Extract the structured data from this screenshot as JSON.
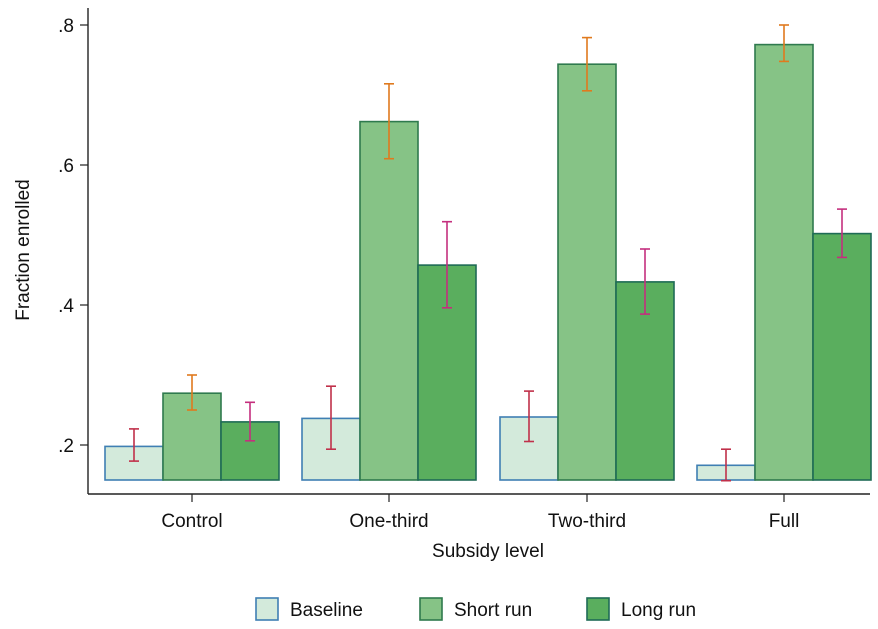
{
  "chart_data": {
    "type": "bar",
    "xlabel": "Subsidy level",
    "ylabel": "Fraction enrolled",
    "categories": [
      "Control",
      "One-third",
      "Two-third",
      "Full"
    ],
    "ylim": [
      0.15,
      0.815
    ],
    "yticks": [
      0.2,
      0.4,
      0.6,
      0.8
    ],
    "ytick_labels": [
      ".2",
      ".4",
      ".6",
      ".8"
    ],
    "grid": false,
    "legend_position": "bottom",
    "series": [
      {
        "name": "Baseline",
        "values": [
          0.198,
          0.238,
          0.24,
          0.171
        ],
        "err_low": [
          0.177,
          0.194,
          0.205,
          0.149
        ],
        "err_high": [
          0.223,
          0.284,
          0.277,
          0.194
        ],
        "fill": "#d3eadb",
        "stroke": "#3f7fb3",
        "errorbar_color": "#c0304a"
      },
      {
        "name": "Short run",
        "values": [
          0.274,
          0.662,
          0.744,
          0.772
        ],
        "err_low": [
          0.25,
          0.609,
          0.706,
          0.748
        ],
        "err_high": [
          0.3,
          0.716,
          0.782,
          0.8
        ],
        "fill": "#86c386",
        "stroke": "#2f7a4e",
        "errorbar_color": "#e07a1e"
      },
      {
        "name": "Long run",
        "values": [
          0.233,
          0.457,
          0.433,
          0.502
        ],
        "err_low": [
          0.206,
          0.396,
          0.387,
          0.468
        ],
        "err_high": [
          0.261,
          0.519,
          0.48,
          0.537
        ],
        "fill": "#5aae5e",
        "stroke": "#1f6b56",
        "errorbar_color": "#c42f7e"
      }
    ]
  }
}
